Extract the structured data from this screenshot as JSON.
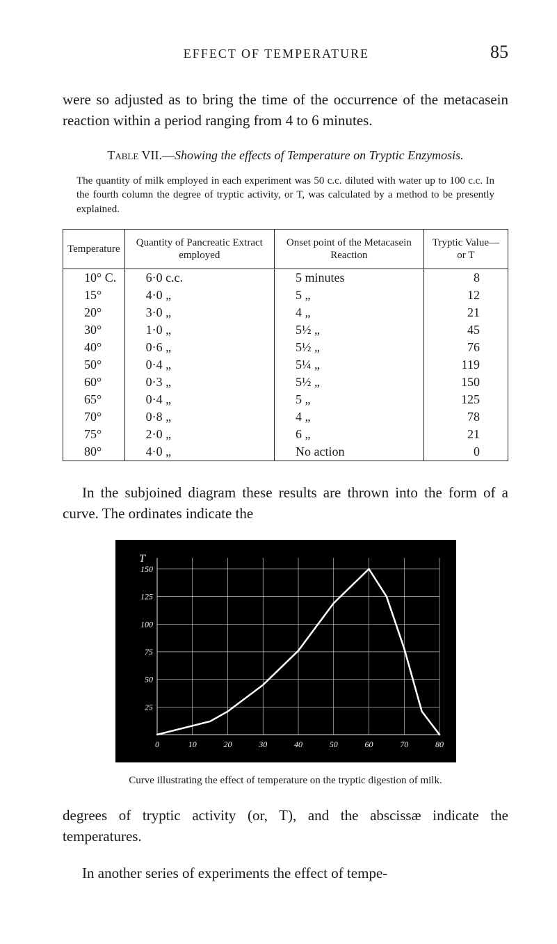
{
  "page": {
    "running_title": "EFFECT OF TEMPERATURE",
    "page_number": "85"
  },
  "para1": "were so adjusted as to bring the time of the occurrence of the metacasein reaction within a period ranging from 4 to 6 minutes.",
  "table_caption_prefix": "Table VII.—",
  "table_caption_main": "Showing the effects of Temperature on Tryptic Enzymosis.",
  "table_note": "The quantity of milk employed in each experiment was 50 c.c. diluted with water up to 100 c.c. In the fourth column the degree of tryptic activity, or T, was calculated by a method to be presently explained.",
  "table": {
    "columns": [
      "Temperature",
      "Quantity of Pancreatic Extract employed",
      "Onset point of the Metacasein Reaction",
      "Tryptic Value—or T"
    ],
    "rows": [
      [
        "10° C.",
        "6·0 c.c.",
        "5 minutes",
        "8"
      ],
      [
        "15°",
        "4·0   „",
        "5      „",
        "12"
      ],
      [
        "20°",
        "3·0   „",
        "4      „",
        "21"
      ],
      [
        "30°",
        "1·0   „",
        "5½    „",
        "45"
      ],
      [
        "40°",
        "0·6   „",
        "5½    „",
        "76"
      ],
      [
        "50°",
        "0·4   „",
        "5¼    „",
        "119"
      ],
      [
        "60°",
        "0·3   „",
        "5½    „",
        "150"
      ],
      [
        "65°",
        "0·4   „",
        "5      „",
        "125"
      ],
      [
        "70°",
        "0·8   „",
        "4      „",
        "78"
      ],
      [
        "75°",
        "2·0   „",
        "6      „",
        "21"
      ],
      [
        "80°",
        "4·0   „",
        "No action",
        "0"
      ]
    ]
  },
  "para2": "In the subjoined diagram these results are thrown into the form of a curve. The ordinates indicate the",
  "chart": {
    "type": "line",
    "T_label": "T",
    "x_ticks": [
      "0",
      "10",
      "20",
      "30",
      "40",
      "50",
      "60",
      "70",
      "80"
    ],
    "y_ticks": [
      "25",
      "50",
      "75",
      "100",
      "125",
      "150"
    ],
    "x_min": 0,
    "x_max": 80,
    "y_min": 0,
    "y_max": 160,
    "background_color": "#000000",
    "grid_color": "#e8e8e8",
    "line_color": "#ffffff",
    "axis_label_color": "#f0f0f0",
    "axis_font_size": 12,
    "line_width": 2.5,
    "points": [
      {
        "x": 0,
        "y": 0
      },
      {
        "x": 10,
        "y": 8
      },
      {
        "x": 15,
        "y": 12
      },
      {
        "x": 20,
        "y": 21
      },
      {
        "x": 30,
        "y": 45
      },
      {
        "x": 40,
        "y": 76
      },
      {
        "x": 50,
        "y": 119
      },
      {
        "x": 60,
        "y": 150
      },
      {
        "x": 65,
        "y": 125
      },
      {
        "x": 70,
        "y": 78
      },
      {
        "x": 75,
        "y": 21
      },
      {
        "x": 80,
        "y": 0
      }
    ]
  },
  "chart_caption": "Curve illustrating the effect of temperature on the tryptic digestion of milk.",
  "para3": "degrees of tryptic activity (or, T), and the abscissæ indicate the temperatures.",
  "para4": "In another series of experiments the effect of tempe-"
}
